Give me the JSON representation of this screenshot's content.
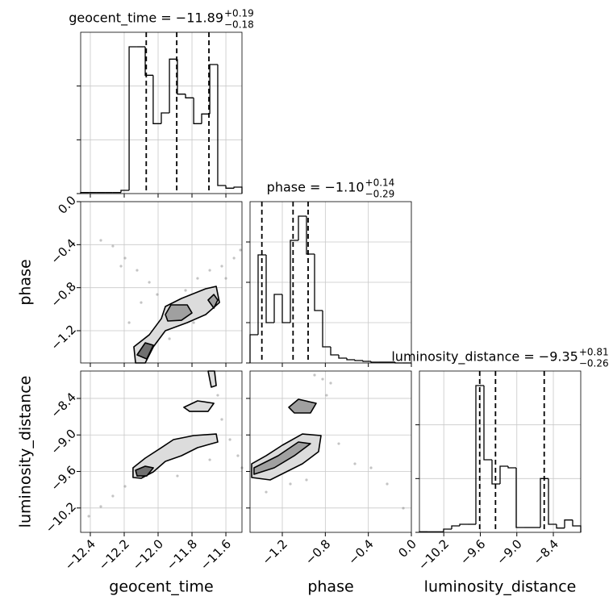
{
  "chart_data": [
    {
      "type": "histogram",
      "title": "geocent_time = −11.89",
      "title_sup": "+0.19",
      "title_sub": "−0.18",
      "bins": [
        -12.457,
        -12.409,
        -12.362,
        -12.314,
        -12.267,
        -12.219,
        -12.171,
        -12.124,
        -12.076,
        -12.029,
        -11.981,
        -11.933,
        -11.886,
        -11.838,
        -11.79,
        -11.743,
        -11.695,
        -11.648,
        -11.6,
        -11.552,
        -11.505
      ],
      "counts": [
        0.02,
        0.02,
        0.02,
        0.02,
        0.02,
        0.06,
        2.73,
        2.73,
        2.2,
        1.3,
        1.5,
        2.5,
        1.85,
        1.78,
        1.3,
        1.48,
        2.4,
        0.15,
        0.1,
        0.12
      ],
      "quantiles": [
        -12.07,
        -11.89,
        -11.7
      ],
      "xlim": [
        -12.457,
        -11.505
      ],
      "ylim": [
        0,
        3
      ],
      "xticks": [
        -12.4,
        -12.2,
        -12.0,
        -11.8,
        -11.6
      ],
      "yticks": [
        0,
        1,
        2
      ],
      "grid": true
    },
    {
      "type": "contour",
      "ylabel": "phase",
      "samples": {
        "x": [
          -12.338,
          -12.267,
          -12.195,
          -12.124,
          -12.052,
          -12.005,
          -12.219,
          -11.838,
          -11.767,
          -11.695,
          -11.624,
          -11.552,
          -11.514,
          -11.6,
          -11.79,
          -11.933,
          -12.171,
          -12.1
        ],
        "y": [
          -0.36,
          -0.413,
          -0.525,
          -0.638,
          -0.75,
          -0.863,
          -0.6,
          -0.825,
          -0.713,
          -0.638,
          -0.6,
          -0.525,
          -0.45,
          -0.713,
          -1.125,
          -1.275,
          -1.125,
          -0.938
        ]
      },
      "contours": [
        {
          "fill": "#dcdcdc",
          "x": [
            -12.133,
            -12.143,
            -12.052,
            -11.981,
            -11.957,
            -11.862,
            -11.719,
            -11.657,
            -11.638,
            -11.719,
            -11.828,
            -11.957,
            -12.028,
            -12.076
          ],
          "y": [
            -1.5,
            -1.35,
            -1.238,
            -1.088,
            -0.975,
            -0.9,
            -0.81,
            -0.788,
            -0.938,
            -1.05,
            -1.125,
            -1.2,
            -1.35,
            -1.5
          ]
        },
        {
          "fill": "#a0a0a0",
          "x": [
            -11.957,
            -11.924,
            -11.828,
            -11.8,
            -11.862,
            -11.943
          ],
          "y": [
            -1.05,
            -0.96,
            -0.96,
            -1.035,
            -1.103,
            -1.11
          ]
        },
        {
          "fill": "#a0a0a0",
          "x": [
            -11.705,
            -11.671,
            -11.648,
            -11.671
          ],
          "y": [
            -0.915,
            -0.863,
            -0.915,
            -0.99
          ]
        },
        {
          "fill": "#707070",
          "x": [
            -12.124,
            -12.076,
            -12.028,
            -12.067
          ],
          "y": [
            -1.425,
            -1.313,
            -1.335,
            -1.463
          ]
        }
      ],
      "xlim": [
        -12.457,
        -11.505
      ],
      "ylim": [
        -1.5,
        0.0
      ],
      "xticks": [
        -12.4,
        -12.2,
        -12.0,
        -11.8,
        -11.6
      ],
      "yticks": [
        {
          "value": -1.2,
          "label": "−1.2"
        },
        {
          "value": -0.8,
          "label": "−0.8"
        },
        {
          "value": -0.4,
          "label": "−0.4"
        },
        {
          "value": 0.0,
          "label": "0.0"
        }
      ],
      "grid": true
    },
    {
      "type": "histogram",
      "title": "phase = −1.10",
      "title_sup": "+0.14",
      "title_sub": "−0.29",
      "bins": [
        -1.5,
        -1.425,
        -1.35,
        -1.275,
        -1.2,
        -1.125,
        -1.05,
        -0.975,
        -0.9,
        -0.825,
        -0.75,
        -0.675,
        -0.6,
        -0.525,
        -0.45,
        -0.375,
        -0.3,
        -0.225,
        -0.15,
        -0.075,
        0.0
      ],
      "counts": [
        0.7,
        2.68,
        1.0,
        1.7,
        1.0,
        3.04,
        3.64,
        2.7,
        1.3,
        0.4,
        0.2,
        0.12,
        0.08,
        0.06,
        0.04,
        0.02,
        0.02,
        0.02,
        0,
        0
      ],
      "quantiles": [
        -1.39,
        -1.1,
        -0.96
      ],
      "xlim": [
        -1.5,
        0.0
      ],
      "ylim": [
        0,
        4
      ],
      "xticks": [
        -1.2,
        -0.8,
        -0.4,
        0.0
      ],
      "yticks": [
        0,
        1,
        2,
        3
      ],
      "grid": true
    },
    {
      "type": "contour",
      "ylabel": "luminosity_distance",
      "xlabel": "geocent_time",
      "samples": {
        "x": [
          -12.409,
          -12.338,
          -12.267,
          -12.195,
          -11.886,
          -11.695,
          -11.624,
          -11.576,
          -11.529,
          -11.505,
          -11.648,
          -11.671
        ],
        "y": [
          -10.335,
          -10.176,
          -10.004,
          -9.845,
          -9.673,
          -9.408,
          -8.745,
          -9.076,
          -9.341,
          -9.54,
          -8.348,
          -8.149
        ]
      },
      "contours": [
        {
          "fill": "#dcdcdc",
          "x": [
            -12.148,
            -12.076,
            -11.981,
            -11.909,
            -11.79,
            -11.657,
            -11.648,
            -11.767,
            -11.862,
            -11.957,
            -12.028,
            -12.1,
            -12.148
          ],
          "y": [
            -9.54,
            -9.381,
            -9.209,
            -9.076,
            -9.01,
            -8.984,
            -9.116,
            -9.209,
            -9.341,
            -9.434,
            -9.606,
            -9.712,
            -9.699
          ]
        },
        {
          "fill": "#707070",
          "x": [
            -12.133,
            -12.076,
            -12.028,
            -12.067,
            -12.124
          ],
          "y": [
            -9.58,
            -9.514,
            -9.54,
            -9.673,
            -9.673
          ]
        },
        {
          "fill": "#dcdcdc",
          "x": [
            -11.848,
            -11.767,
            -11.671,
            -11.705,
            -11.814
          ],
          "y": [
            -8.546,
            -8.44,
            -8.48,
            -8.613,
            -8.613
          ]
        },
        {
          "fill": "#dcdcdc",
          "x": [
            -11.705,
            -11.686,
            -11.657,
            -11.667
          ],
          "y": [
            -7.95,
            -8.215,
            -8.189,
            -7.95
          ]
        }
      ],
      "xlim": [
        -12.457,
        -11.505
      ],
      "ylim": [
        -10.6,
        -7.95
      ],
      "xticks": [
        {
          "value": -12.4,
          "label": "−12.4"
        },
        {
          "value": -12.2,
          "label": "−12.2"
        },
        {
          "value": -12.0,
          "label": "−12.0"
        },
        {
          "value": -11.8,
          "label": "−11.8"
        },
        {
          "value": -11.6,
          "label": "−11.6"
        }
      ],
      "yticks": [
        {
          "value": -10.2,
          "label": "−10.2"
        },
        {
          "value": -9.6,
          "label": "−9.6"
        },
        {
          "value": -9.0,
          "label": "−9.0"
        },
        {
          "value": -8.4,
          "label": "−8.4"
        }
      ],
      "grid": true
    },
    {
      "type": "contour",
      "xlabel": "phase",
      "samples": {
        "x": [
          -0.9,
          -0.825,
          -0.75,
          -0.788,
          -0.675,
          -0.525,
          -0.375,
          -0.225,
          -0.075,
          -1.35,
          -1.125,
          -0.975
        ],
        "y": [
          -8.016,
          -8.083,
          -8.149,
          -8.348,
          -9.143,
          -9.474,
          -9.54,
          -9.805,
          -10.203,
          -9.938,
          -9.805,
          -9.739
        ]
      },
      "contours": [
        {
          "fill": "#dcdcdc",
          "x": [
            -1.485,
            -1.35,
            -1.2,
            -1.013,
            -0.84,
            -0.863,
            -1.013,
            -1.163,
            -1.313,
            -1.485
          ],
          "y": [
            -9.474,
            -9.341,
            -9.169,
            -8.984,
            -9.01,
            -9.275,
            -9.474,
            -9.606,
            -9.739,
            -9.699
          ]
        },
        {
          "fill": "#a0a0a0",
          "x": [
            -1.463,
            -1.238,
            -1.05,
            -0.938,
            -1.088,
            -1.275,
            -1.463
          ],
          "y": [
            -9.54,
            -9.341,
            -9.116,
            -9.143,
            -9.341,
            -9.54,
            -9.646
          ]
        },
        {
          "fill": "#a0a0a0",
          "x": [
            -1.14,
            -1.05,
            -0.885,
            -0.938,
            -1.088
          ],
          "y": [
            -8.546,
            -8.414,
            -8.48,
            -8.639,
            -8.639
          ]
        }
      ],
      "xlim": [
        -1.5,
        0.0
      ],
      "ylim": [
        -10.6,
        -7.95
      ],
      "xticks": [
        {
          "value": -1.2,
          "label": "−1.2"
        },
        {
          "value": -0.8,
          "label": "−0.8"
        },
        {
          "value": -0.4,
          "label": "−0.4"
        },
        {
          "value": 0.0,
          "label": "0.0"
        }
      ],
      "yticks": [
        -10.2,
        -9.6,
        -9.0,
        -8.4
      ],
      "grid": true
    },
    {
      "type": "histogram",
      "title": "luminosity_distance = −9.35",
      "title_sup": "+0.81",
      "title_sub": "−0.26",
      "xlabel": "luminosity_distance",
      "bins": [
        -10.6,
        -10.4675,
        -10.335,
        -10.2025,
        -10.07,
        -9.9375,
        -9.805,
        -9.6725,
        -9.54,
        -9.4075,
        -9.275,
        -9.1425,
        -9.01,
        -8.8775,
        -8.745,
        -8.6125,
        -8.48,
        -8.3475,
        -8.215,
        -8.0825,
        -7.95
      ],
      "counts": [
        0.01,
        0.01,
        0.01,
        0.06,
        0.12,
        0.15,
        0.15,
        2.73,
        1.35,
        0.9,
        1.23,
        1.2,
        0.09,
        0.09,
        0.09,
        1.0,
        0.15,
        0.08,
        0.23,
        0.12
      ],
      "quantiles": [
        -9.61,
        -9.35,
        -8.55
      ],
      "xlim": [
        -10.6,
        -7.95
      ],
      "ylim": [
        0,
        3
      ],
      "xticks": [
        {
          "value": -10.2,
          "label": "−10.2"
        },
        {
          "value": -9.6,
          "label": "−9.6"
        },
        {
          "value": -9.0,
          "label": "−9.0"
        },
        {
          "value": -8.4,
          "label": "−8.4"
        }
      ],
      "yticks": [
        0,
        1,
        2
      ],
      "grid": true
    }
  ]
}
